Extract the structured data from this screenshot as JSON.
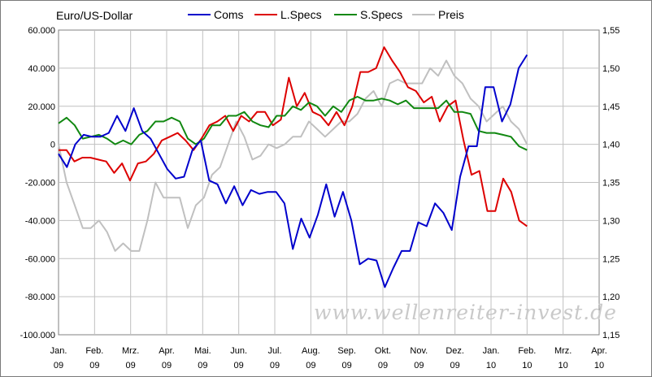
{
  "chart_data": {
    "type": "line",
    "title": "Euro/US-Dollar",
    "legend": {
      "placement": "top"
    },
    "grid": true,
    "x_ticks": [
      {
        "month": "Jan.",
        "year": "09"
      },
      {
        "month": "Feb.",
        "year": "09"
      },
      {
        "month": "Mrz.",
        "year": "09"
      },
      {
        "month": "Apr.",
        "year": "09"
      },
      {
        "month": "Mai.",
        "year": "09"
      },
      {
        "month": "Jun.",
        "year": "09"
      },
      {
        "month": "Jul.",
        "year": "09"
      },
      {
        "month": "Aug.",
        "year": "09"
      },
      {
        "month": "Sep.",
        "year": "09"
      },
      {
        "month": "Okt.",
        "year": "09"
      },
      {
        "month": "Nov.",
        "year": "09"
      },
      {
        "month": "Dez.",
        "year": "09"
      },
      {
        "month": "Jan.",
        "year": "10"
      },
      {
        "month": "Feb.",
        "year": "10"
      },
      {
        "month": "Mrz.",
        "year": "10"
      },
      {
        "month": "Apr.",
        "year": "10"
      }
    ],
    "y_left": {
      "min": -100000,
      "max": 60000,
      "ticks": [
        "60.000",
        "40.000",
        "20.000",
        "0",
        "-20.000",
        "-40.000",
        "-60.000",
        "-80.000",
        "-100.000"
      ]
    },
    "y_right": {
      "min": 1.15,
      "max": 1.55,
      "ticks": [
        "1,55",
        "1,50",
        "1,45",
        "1,40",
        "1,35",
        "1,30",
        "1,25",
        "1,20",
        "1,15"
      ]
    },
    "series": [
      {
        "name": "Coms",
        "color": "#0000cc",
        "axis": "left",
        "values": [
          -5000,
          -12000,
          0,
          5000,
          4000,
          4000,
          6000,
          15000,
          7000,
          19000,
          7000,
          3000,
          -5000,
          -13000,
          -18000,
          -17000,
          -3000,
          2000,
          -19000,
          -21000,
          -31000,
          -22000,
          -32000,
          -24000,
          -26000,
          -25000,
          -25000,
          -31000,
          -55000,
          -39000,
          -49000,
          -37000,
          -21000,
          -38000,
          -25000,
          -40000,
          -63000,
          -60000,
          -61000,
          -75000,
          -65000,
          -56000,
          -56000,
          -41000,
          -43000,
          -31000,
          -36000,
          -45000,
          -17000,
          -1000,
          -1000,
          30000,
          30000,
          12000,
          21000,
          40000,
          47000
        ]
      },
      {
        "name": "L.Specs",
        "color": "#dd0000",
        "axis": "left",
        "values": [
          -3000,
          -3000,
          -9000,
          -7000,
          -7000,
          -8000,
          -9000,
          -15000,
          -10000,
          -19000,
          -10000,
          -9000,
          -5000,
          2000,
          4000,
          6000,
          2000,
          -3000,
          3000,
          10000,
          12000,
          15000,
          7000,
          15000,
          12000,
          17000,
          17000,
          10000,
          13000,
          35000,
          20000,
          27000,
          17000,
          15000,
          10000,
          17000,
          10000,
          20000,
          38000,
          38000,
          40000,
          51000,
          44000,
          38000,
          30000,
          28000,
          22000,
          25000,
          12000,
          20000,
          23000,
          2000,
          -16000,
          -14000,
          -35000,
          -35000,
          -18000,
          -25000,
          -40000,
          -43000
        ]
      },
      {
        "name": "S.Specs",
        "color": "#118811",
        "axis": "left",
        "values": [
          11000,
          14000,
          10000,
          3000,
          4000,
          5000,
          3000,
          0,
          2000,
          0,
          5000,
          7000,
          12000,
          12000,
          14000,
          12000,
          3000,
          0,
          3000,
          10000,
          10000,
          15000,
          15000,
          17000,
          12000,
          10000,
          9000,
          15000,
          15000,
          20000,
          18000,
          22000,
          20000,
          15000,
          20000,
          17000,
          23000,
          25000,
          23000,
          23000,
          24000,
          23000,
          21000,
          23000,
          19000,
          19000,
          19000,
          19000,
          23000,
          17000,
          17000,
          16000,
          7000,
          6000,
          6000,
          5000,
          4000,
          -1000,
          -3000
        ]
      },
      {
        "name": "Preis",
        "color": "#c0c0c0",
        "axis": "right",
        "values": [
          1.4,
          1.35,
          1.32,
          1.29,
          1.29,
          1.3,
          1.285,
          1.26,
          1.27,
          1.26,
          1.26,
          1.3,
          1.35,
          1.33,
          1.33,
          1.33,
          1.29,
          1.32,
          1.33,
          1.36,
          1.37,
          1.4,
          1.43,
          1.41,
          1.38,
          1.385,
          1.4,
          1.395,
          1.4,
          1.41,
          1.41,
          1.43,
          1.42,
          1.41,
          1.42,
          1.43,
          1.43,
          1.44,
          1.46,
          1.47,
          1.45,
          1.48,
          1.485,
          1.48,
          1.48,
          1.48,
          1.5,
          1.49,
          1.51,
          1.49,
          1.48,
          1.46,
          1.45,
          1.43,
          1.44,
          1.45,
          1.43,
          1.42,
          1.4
        ]
      }
    ],
    "watermark": "www.wellenreiter-invest.de"
  }
}
